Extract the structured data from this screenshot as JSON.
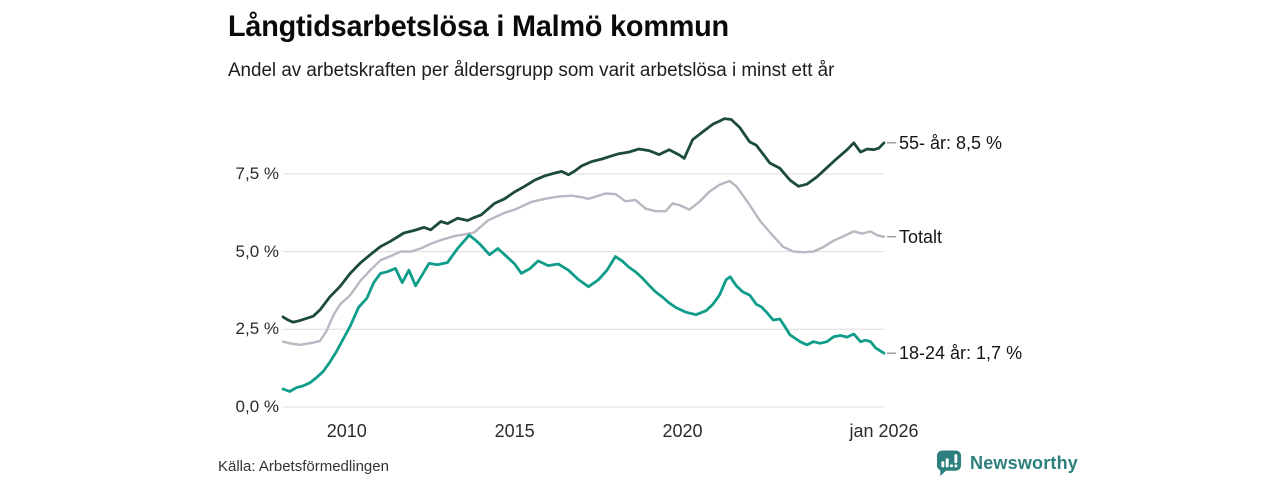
{
  "header": {
    "title": "Långtidsarbetslösa i Malmö kommun",
    "subtitle": "Andel av arbetskraften per åldersgrupp som varit arbetslösa i minst ett år"
  },
  "footer": {
    "source": "Källa: Arbetsförmedlingen",
    "brand": "Newsworthy"
  },
  "colors": {
    "series_55": "#1c4a3e",
    "series_total": "#b8b7c2",
    "series_18_24": "#0f9d8a",
    "grid": "#dcdcdc",
    "tick_dash": "#979797",
    "brand_teal": "#2d807e",
    "text": "#0a0a0a"
  },
  "chart_data": {
    "type": "line",
    "title": "Långtidsarbetslösa i Malmö kommun",
    "subtitle": "Andel av arbetskraften per åldersgrupp som varit arbetslösa i minst ett år",
    "unit": "% av arbetskraften",
    "grid": true,
    "legend_position": "right-of-line-ends",
    "x_axis": {
      "domain": [
        2008.1,
        2026.0
      ],
      "ticks": [
        {
          "x": 2010,
          "label": "2010"
        },
        {
          "x": 2015,
          "label": "2015"
        },
        {
          "x": 2020,
          "label": "2020"
        },
        {
          "x": 2026.0,
          "label": "jan 2026"
        }
      ]
    },
    "y_axis": {
      "domain": [
        0,
        9.6
      ],
      "ticks": [
        {
          "v": 0,
          "label": "0,0 %"
        },
        {
          "v": 2.5,
          "label": "2,5 %"
        },
        {
          "v": 5.0,
          "label": "5,0 %"
        },
        {
          "v": 7.5,
          "label": "7,5 %"
        }
      ]
    },
    "series": [
      {
        "id": "totalt",
        "name": "Totalt",
        "end_label": "Totalt",
        "color": "#b8b7c2",
        "stroke_width": 2.4,
        "points": [
          [
            2008.1,
            2.1
          ],
          [
            2008.3,
            2.05
          ],
          [
            2008.6,
            2.0
          ],
          [
            2008.9,
            2.05
          ],
          [
            2009.2,
            2.12
          ],
          [
            2009.4,
            2.45
          ],
          [
            2009.6,
            2.95
          ],
          [
            2009.8,
            3.3
          ],
          [
            2010.1,
            3.6
          ],
          [
            2010.4,
            4.05
          ],
          [
            2010.7,
            4.4
          ],
          [
            2011.0,
            4.72
          ],
          [
            2011.3,
            4.85
          ],
          [
            2011.6,
            5.0
          ],
          [
            2011.9,
            5.0
          ],
          [
            2012.2,
            5.1
          ],
          [
            2012.5,
            5.25
          ],
          [
            2012.8,
            5.37
          ],
          [
            2013.2,
            5.5
          ],
          [
            2013.5,
            5.55
          ],
          [
            2013.8,
            5.62
          ],
          [
            2014.2,
            6.0
          ],
          [
            2014.7,
            6.25
          ],
          [
            2015.0,
            6.35
          ],
          [
            2015.5,
            6.6
          ],
          [
            2015.9,
            6.7
          ],
          [
            2016.3,
            6.77
          ],
          [
            2016.7,
            6.8
          ],
          [
            2017.0,
            6.75
          ],
          [
            2017.2,
            6.7
          ],
          [
            2017.5,
            6.8
          ],
          [
            2017.7,
            6.87
          ],
          [
            2018.0,
            6.85
          ],
          [
            2018.3,
            6.62
          ],
          [
            2018.6,
            6.66
          ],
          [
            2018.9,
            6.38
          ],
          [
            2019.2,
            6.3
          ],
          [
            2019.5,
            6.3
          ],
          [
            2019.7,
            6.55
          ],
          [
            2019.9,
            6.5
          ],
          [
            2020.2,
            6.35
          ],
          [
            2020.5,
            6.6
          ],
          [
            2020.8,
            6.93
          ],
          [
            2021.1,
            7.15
          ],
          [
            2021.4,
            7.27
          ],
          [
            2021.6,
            7.1
          ],
          [
            2021.9,
            6.66
          ],
          [
            2022.3,
            6.0
          ],
          [
            2022.7,
            5.5
          ],
          [
            2023.0,
            5.15
          ],
          [
            2023.3,
            5.0
          ],
          [
            2023.6,
            4.98
          ],
          [
            2023.9,
            5.0
          ],
          [
            2024.2,
            5.15
          ],
          [
            2024.5,
            5.35
          ],
          [
            2024.8,
            5.5
          ],
          [
            2025.1,
            5.65
          ],
          [
            2025.35,
            5.58
          ],
          [
            2025.6,
            5.65
          ],
          [
            2025.8,
            5.52
          ],
          [
            2026.0,
            5.48
          ]
        ]
      },
      {
        "id": "18-24-ar",
        "name": "18-24 år",
        "end_label": "18-24 år: 1,7 %",
        "color": "#0f9d8a",
        "stroke_width": 2.8,
        "points": [
          [
            2008.1,
            0.58
          ],
          [
            2008.3,
            0.5
          ],
          [
            2008.5,
            0.62
          ],
          [
            2008.7,
            0.68
          ],
          [
            2008.9,
            0.78
          ],
          [
            2009.1,
            0.95
          ],
          [
            2009.3,
            1.15
          ],
          [
            2009.5,
            1.45
          ],
          [
            2009.7,
            1.8
          ],
          [
            2009.9,
            2.2
          ],
          [
            2010.1,
            2.6
          ],
          [
            2010.35,
            3.2
          ],
          [
            2010.6,
            3.5
          ],
          [
            2010.8,
            4.0
          ],
          [
            2011.0,
            4.3
          ],
          [
            2011.2,
            4.35
          ],
          [
            2011.45,
            4.46
          ],
          [
            2011.65,
            4.0
          ],
          [
            2011.85,
            4.4
          ],
          [
            2012.05,
            3.9
          ],
          [
            2012.3,
            4.35
          ],
          [
            2012.45,
            4.62
          ],
          [
            2012.7,
            4.58
          ],
          [
            2013.0,
            4.65
          ],
          [
            2013.3,
            5.1
          ],
          [
            2013.65,
            5.53
          ],
          [
            2013.85,
            5.35
          ],
          [
            2014.0,
            5.2
          ],
          [
            2014.25,
            4.9
          ],
          [
            2014.5,
            5.1
          ],
          [
            2014.8,
            4.8
          ],
          [
            2015.0,
            4.6
          ],
          [
            2015.2,
            4.3
          ],
          [
            2015.45,
            4.45
          ],
          [
            2015.7,
            4.7
          ],
          [
            2016.0,
            4.55
          ],
          [
            2016.3,
            4.6
          ],
          [
            2016.6,
            4.4
          ],
          [
            2016.9,
            4.1
          ],
          [
            2017.2,
            3.87
          ],
          [
            2017.5,
            4.1
          ],
          [
            2017.75,
            4.4
          ],
          [
            2018.0,
            4.84
          ],
          [
            2018.2,
            4.7
          ],
          [
            2018.4,
            4.5
          ],
          [
            2018.6,
            4.35
          ],
          [
            2018.8,
            4.15
          ],
          [
            2019.0,
            3.92
          ],
          [
            2019.2,
            3.7
          ],
          [
            2019.4,
            3.54
          ],
          [
            2019.6,
            3.35
          ],
          [
            2019.8,
            3.2
          ],
          [
            2020.1,
            3.05
          ],
          [
            2020.4,
            2.97
          ],
          [
            2020.7,
            3.1
          ],
          [
            2020.9,
            3.3
          ],
          [
            2021.1,
            3.6
          ],
          [
            2021.3,
            4.1
          ],
          [
            2021.42,
            4.19
          ],
          [
            2021.6,
            3.9
          ],
          [
            2021.8,
            3.7
          ],
          [
            2022.0,
            3.6
          ],
          [
            2022.2,
            3.3
          ],
          [
            2022.35,
            3.22
          ],
          [
            2022.5,
            3.05
          ],
          [
            2022.7,
            2.8
          ],
          [
            2022.9,
            2.83
          ],
          [
            2023.1,
            2.5
          ],
          [
            2023.2,
            2.32
          ],
          [
            2023.5,
            2.1
          ],
          [
            2023.7,
            2.0
          ],
          [
            2023.9,
            2.1
          ],
          [
            2024.1,
            2.05
          ],
          [
            2024.3,
            2.1
          ],
          [
            2024.5,
            2.26
          ],
          [
            2024.7,
            2.3
          ],
          [
            2024.9,
            2.25
          ],
          [
            2025.1,
            2.35
          ],
          [
            2025.3,
            2.1
          ],
          [
            2025.45,
            2.15
          ],
          [
            2025.6,
            2.1
          ],
          [
            2025.75,
            1.9
          ],
          [
            2026.0,
            1.73
          ]
        ]
      },
      {
        "id": "55-ar",
        "name": "55- år",
        "end_label": "55- år: 8,5 %",
        "color": "#1c4a3e",
        "stroke_width": 2.8,
        "points": [
          [
            2008.1,
            2.9
          ],
          [
            2008.25,
            2.8
          ],
          [
            2008.4,
            2.73
          ],
          [
            2008.6,
            2.78
          ],
          [
            2008.85,
            2.87
          ],
          [
            2009.0,
            2.92
          ],
          [
            2009.2,
            3.12
          ],
          [
            2009.5,
            3.55
          ],
          [
            2009.8,
            3.88
          ],
          [
            2010.1,
            4.3
          ],
          [
            2010.4,
            4.63
          ],
          [
            2010.7,
            4.9
          ],
          [
            2011.0,
            5.16
          ],
          [
            2011.3,
            5.33
          ],
          [
            2011.7,
            5.6
          ],
          [
            2012.0,
            5.68
          ],
          [
            2012.3,
            5.78
          ],
          [
            2012.5,
            5.7
          ],
          [
            2012.8,
            5.97
          ],
          [
            2013.0,
            5.9
          ],
          [
            2013.3,
            6.07
          ],
          [
            2013.6,
            6.0
          ],
          [
            2013.8,
            6.1
          ],
          [
            2014.0,
            6.18
          ],
          [
            2014.4,
            6.55
          ],
          [
            2014.7,
            6.7
          ],
          [
            2015.0,
            6.92
          ],
          [
            2015.3,
            7.1
          ],
          [
            2015.6,
            7.3
          ],
          [
            2015.9,
            7.44
          ],
          [
            2016.2,
            7.53
          ],
          [
            2016.4,
            7.58
          ],
          [
            2016.6,
            7.47
          ],
          [
            2016.8,
            7.6
          ],
          [
            2017.0,
            7.76
          ],
          [
            2017.3,
            7.9
          ],
          [
            2017.6,
            7.98
          ],
          [
            2017.8,
            8.05
          ],
          [
            2018.1,
            8.15
          ],
          [
            2018.4,
            8.2
          ],
          [
            2018.7,
            8.3
          ],
          [
            2019.0,
            8.25
          ],
          [
            2019.3,
            8.12
          ],
          [
            2019.6,
            8.28
          ],
          [
            2019.9,
            8.11
          ],
          [
            2020.05,
            8.0
          ],
          [
            2020.3,
            8.6
          ],
          [
            2020.6,
            8.85
          ],
          [
            2020.9,
            9.1
          ],
          [
            2021.1,
            9.2
          ],
          [
            2021.25,
            9.28
          ],
          [
            2021.45,
            9.25
          ],
          [
            2021.7,
            9.0
          ],
          [
            2022.0,
            8.53
          ],
          [
            2022.2,
            8.42
          ],
          [
            2022.6,
            7.85
          ],
          [
            2022.9,
            7.68
          ],
          [
            2023.2,
            7.3
          ],
          [
            2023.45,
            7.1
          ],
          [
            2023.7,
            7.17
          ],
          [
            2024.0,
            7.4
          ],
          [
            2024.3,
            7.7
          ],
          [
            2024.6,
            8.0
          ],
          [
            2024.9,
            8.28
          ],
          [
            2025.1,
            8.5
          ],
          [
            2025.3,
            8.2
          ],
          [
            2025.5,
            8.3
          ],
          [
            2025.7,
            8.28
          ],
          [
            2025.85,
            8.33
          ],
          [
            2026.0,
            8.5
          ]
        ]
      }
    ]
  }
}
